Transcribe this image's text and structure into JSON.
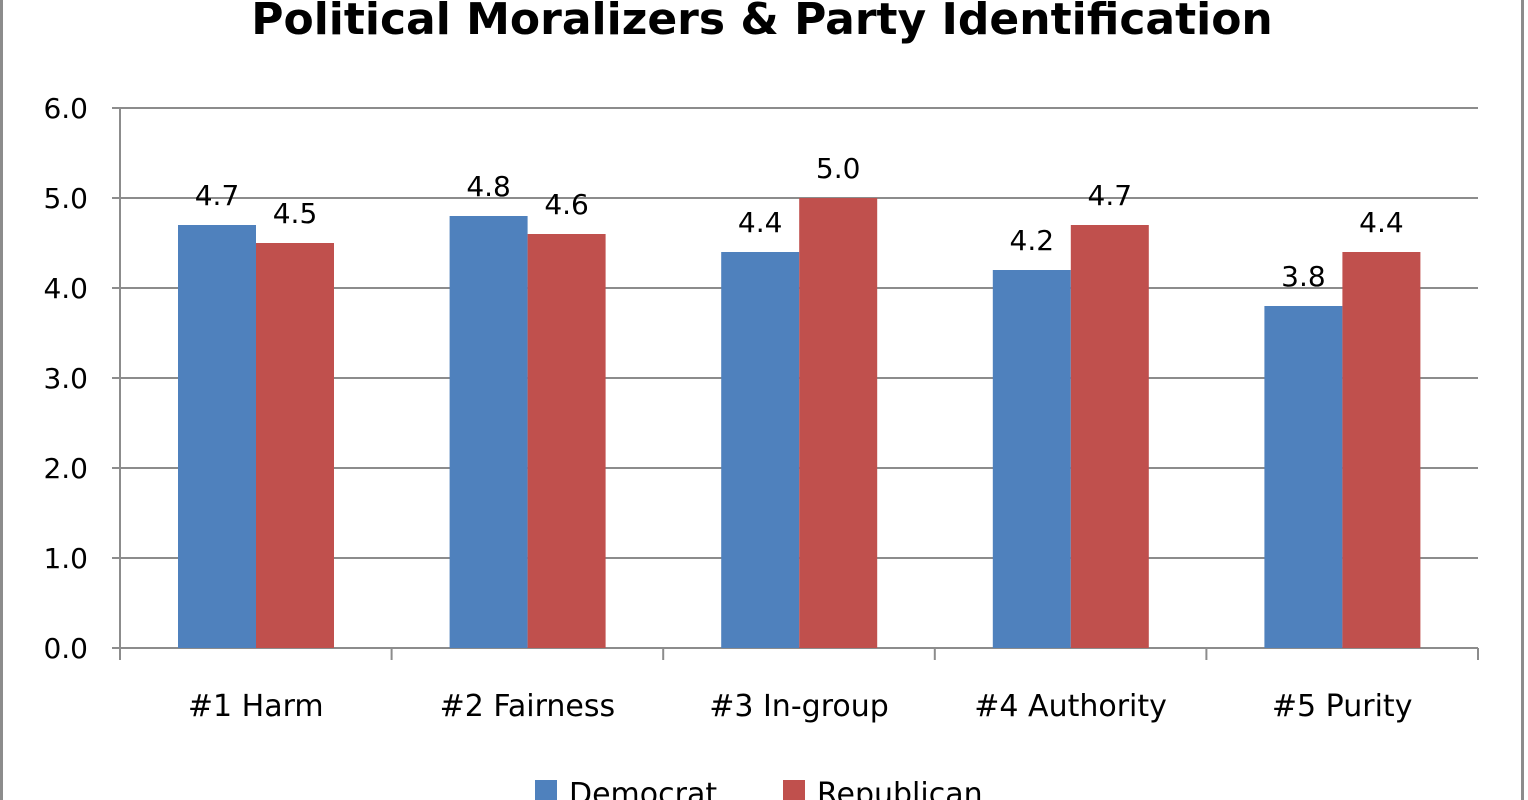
{
  "chart_data": {
    "type": "bar",
    "title": "Political Moralizers & Party Identification",
    "xlabel": "",
    "ylabel": "",
    "ylim": [
      0,
      6
    ],
    "yticks": [
      "0.0",
      "1.0",
      "2.0",
      "3.0",
      "4.0",
      "5.0",
      "6.0"
    ],
    "grid": true,
    "legend": "bottom",
    "categories": [
      "#1 Harm",
      "#2 Fairness",
      "#3 In-group",
      "#4 Authority",
      "#5 Purity"
    ],
    "series": [
      {
        "name": "Democrat",
        "color": "#4f81bd",
        "values": [
          4.7,
          4.8,
          4.4,
          4.2,
          3.8
        ]
      },
      {
        "name": "Republican",
        "color": "#c0504d",
        "values": [
          4.5,
          4.6,
          5.0,
          4.7,
          4.4
        ]
      }
    ]
  }
}
